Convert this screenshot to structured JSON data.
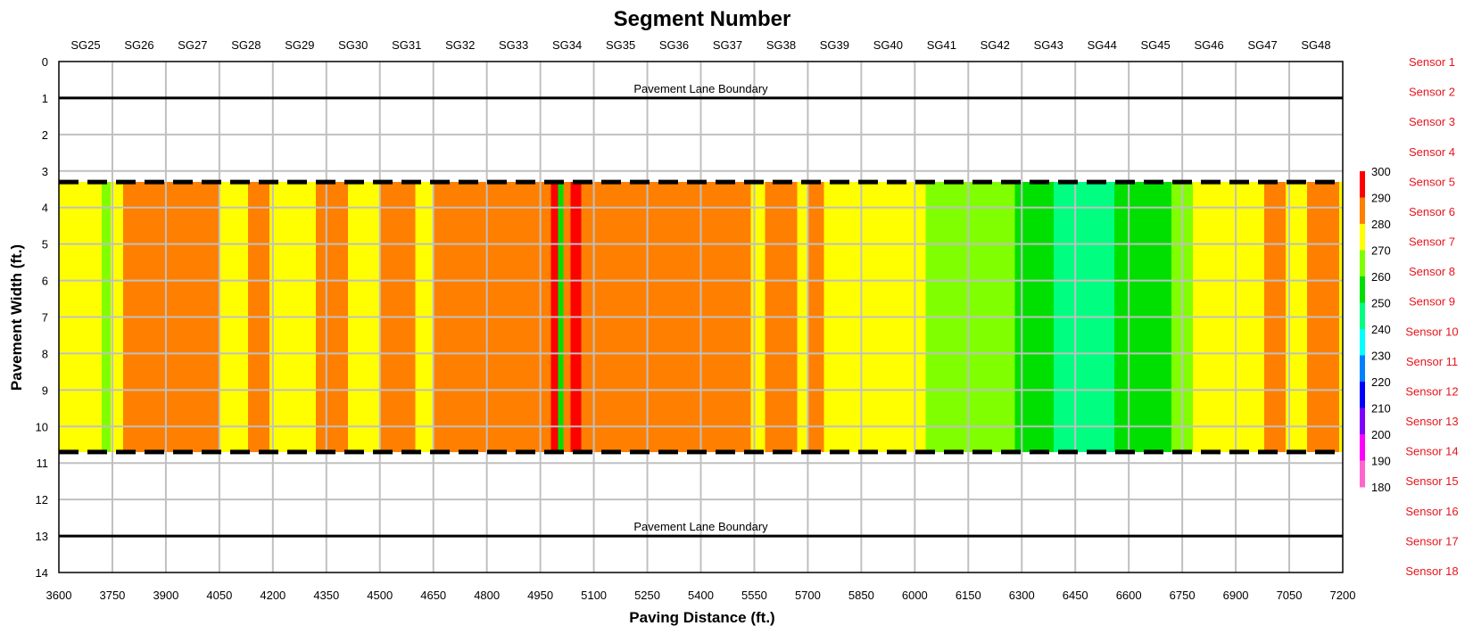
{
  "chart_data": {
    "type": "heatmap",
    "title": "Segment Number",
    "xlabel": "Paving Distance (ft.)",
    "ylabel": "Pavement Width (ft.)",
    "xlim": [
      3600,
      7200
    ],
    "ylim": [
      0,
      14
    ],
    "y_inverted": true,
    "x_ticks": [
      3600,
      3750,
      3900,
      4050,
      4200,
      4350,
      4500,
      4650,
      4800,
      4950,
      5100,
      5250,
      5400,
      5550,
      5700,
      5850,
      6000,
      6150,
      6300,
      6450,
      6600,
      6750,
      6900,
      7050,
      7200
    ],
    "y_ticks": [
      0,
      1,
      2,
      3,
      4,
      5,
      6,
      7,
      8,
      9,
      10,
      11,
      12,
      13,
      14
    ],
    "segments": [
      "SG25",
      "SG26",
      "SG27",
      "SG28",
      "SG29",
      "SG30",
      "SG31",
      "SG32",
      "SG33",
      "SG34",
      "SG35",
      "SG36",
      "SG37",
      "SG38",
      "SG39",
      "SG40",
      "SG41",
      "SG42",
      "SG43",
      "SG44",
      "SG45",
      "SG46",
      "SG47",
      "SG48"
    ],
    "sensors": [
      "Sensor 1",
      "Sensor 2",
      "Sensor 3",
      "Sensor 4",
      "Sensor 5",
      "Sensor 6",
      "Sensor 7",
      "Sensor 8",
      "Sensor 9",
      "Sensor 10",
      "Sensor 11",
      "Sensor 12",
      "Sensor 13",
      "Sensor 14",
      "Sensor 15",
      "Sensor 16",
      "Sensor 17",
      "Sensor 18"
    ],
    "colorbar": {
      "ticks": [
        300,
        290,
        280,
        270,
        260,
        250,
        240,
        230,
        220,
        210,
        200,
        190,
        180
      ],
      "colors": [
        "#ff0000",
        "#ff7f00",
        "#ffff00",
        "#80ff00",
        "#00e000",
        "#00ff80",
        "#00ffff",
        "#0080ff",
        "#0000ff",
        "#8000ff",
        "#ff00ff",
        "#ff66cc"
      ]
    },
    "lane_boundaries": [
      {
        "y": 1,
        "label": "Pavement Lane Boundary"
      },
      {
        "y": 13,
        "label": "Pavement Lane Boundary"
      }
    ],
    "mat_edges": [
      3.3,
      10.7
    ],
    "grid": true,
    "heat_bands": [
      {
        "x0": 3600,
        "x1": 3720,
        "temp": 275,
        "color": "#ffff00"
      },
      {
        "x0": 3720,
        "x1": 3745,
        "temp": 268,
        "color": "#80ff00"
      },
      {
        "x0": 3745,
        "x1": 3780,
        "temp": 275,
        "color": "#ffff00"
      },
      {
        "x0": 3780,
        "x1": 3900,
        "temp": 285,
        "color": "#ff7f00"
      },
      {
        "x0": 3900,
        "x1": 4050,
        "temp": 285,
        "color": "#ff7f00"
      },
      {
        "x0": 4050,
        "x1": 4130,
        "temp": 275,
        "color": "#ffff00"
      },
      {
        "x0": 4130,
        "x1": 4190,
        "temp": 285,
        "color": "#ff7f00"
      },
      {
        "x0": 4190,
        "x1": 4320,
        "temp": 275,
        "color": "#ffff00"
      },
      {
        "x0": 4320,
        "x1": 4410,
        "temp": 285,
        "color": "#ff7f00"
      },
      {
        "x0": 4410,
        "x1": 4500,
        "temp": 275,
        "color": "#ffff00"
      },
      {
        "x0": 4500,
        "x1": 4600,
        "temp": 285,
        "color": "#ff7f00"
      },
      {
        "x0": 4600,
        "x1": 4650,
        "temp": 275,
        "color": "#ffff00"
      },
      {
        "x0": 4650,
        "x1": 4980,
        "temp": 285,
        "color": "#ff7f00"
      },
      {
        "x0": 4980,
        "x1": 5000,
        "temp": 295,
        "color": "#ff0000"
      },
      {
        "x0": 5000,
        "x1": 5015,
        "temp": 255,
        "color": "#00e000"
      },
      {
        "x0": 5015,
        "x1": 5035,
        "temp": 285,
        "color": "#ff7f00"
      },
      {
        "x0": 5035,
        "x1": 5065,
        "temp": 295,
        "color": "#ff0000"
      },
      {
        "x0": 5065,
        "x1": 5540,
        "temp": 285,
        "color": "#ff7f00"
      },
      {
        "x0": 5540,
        "x1": 5580,
        "temp": 275,
        "color": "#ffff00"
      },
      {
        "x0": 5580,
        "x1": 5670,
        "temp": 285,
        "color": "#ff7f00"
      },
      {
        "x0": 5670,
        "x1": 5700,
        "temp": 275,
        "color": "#ffff00"
      },
      {
        "x0": 5700,
        "x1": 5745,
        "temp": 285,
        "color": "#ff7f00"
      },
      {
        "x0": 5745,
        "x1": 6030,
        "temp": 275,
        "color": "#ffff00"
      },
      {
        "x0": 6030,
        "x1": 6110,
        "temp": 268,
        "color": "#80ff00"
      },
      {
        "x0": 6110,
        "x1": 6280,
        "temp": 265,
        "color": "#80ff00"
      },
      {
        "x0": 6280,
        "x1": 6390,
        "temp": 255,
        "color": "#00e000"
      },
      {
        "x0": 6390,
        "x1": 6560,
        "temp": 245,
        "color": "#00ff80"
      },
      {
        "x0": 6560,
        "x1": 6720,
        "temp": 255,
        "color": "#00e000"
      },
      {
        "x0": 6720,
        "x1": 6780,
        "temp": 265,
        "color": "#80ff00"
      },
      {
        "x0": 6780,
        "x1": 6900,
        "temp": 275,
        "color": "#ffff00"
      },
      {
        "x0": 6900,
        "x1": 6980,
        "temp": 275,
        "color": "#ffff00"
      },
      {
        "x0": 6980,
        "x1": 7040,
        "temp": 285,
        "color": "#ff7f00"
      },
      {
        "x0": 7040,
        "x1": 7100,
        "temp": 275,
        "color": "#ffff00"
      },
      {
        "x0": 7100,
        "x1": 7190,
        "temp": 285,
        "color": "#ff7f00"
      },
      {
        "x0": 7190,
        "x1": 7200,
        "temp": 275,
        "color": "#ffff00"
      }
    ]
  }
}
